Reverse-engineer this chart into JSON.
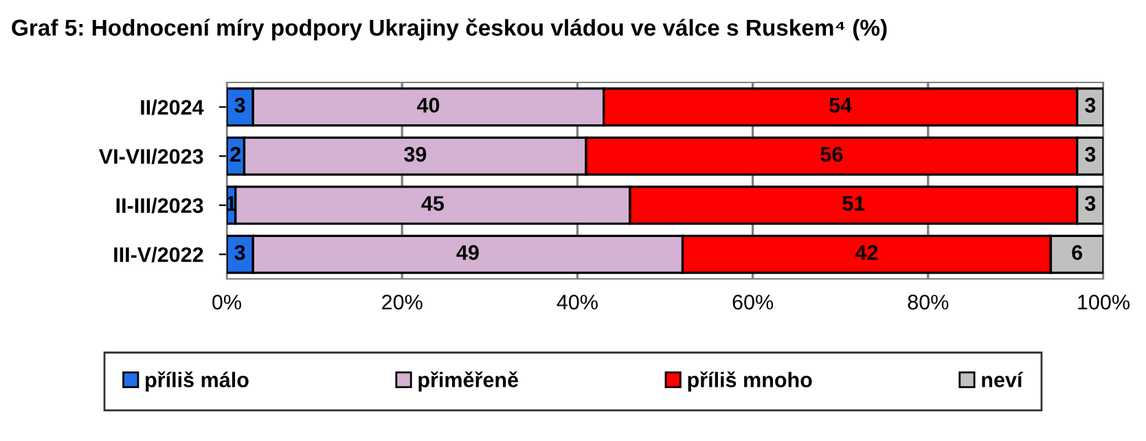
{
  "chart_data": {
    "type": "bar",
    "orientation": "horizontal",
    "stacked": true,
    "title": "Graf 5: Hodnocení míry podpory Ukrajiny českou vládou ve válce s Ruskem⁴ (%)",
    "categories": [
      "II/2024",
      "VI-VII/2023",
      "II-III/2023",
      "III-V/2022"
    ],
    "series": [
      {
        "name": "příliš málo",
        "color": "#1f6fe8",
        "values": [
          3,
          2,
          1,
          3
        ]
      },
      {
        "name": "přiměřeně",
        "color": "#d3b2d3",
        "values": [
          40,
          39,
          45,
          49
        ]
      },
      {
        "name": "příliš mnoho",
        "color": "#ff0000",
        "values": [
          54,
          56,
          51,
          42
        ]
      },
      {
        "name": "neví",
        "color": "#c0c0c0",
        "values": [
          3,
          3,
          3,
          6
        ]
      }
    ],
    "xlim": [
      0,
      100
    ],
    "xticks": [
      {
        "value": 0,
        "label": "0%"
      },
      {
        "value": 20,
        "label": "20%"
      },
      {
        "value": 40,
        "label": "40%"
      },
      {
        "value": 60,
        "label": "60%"
      },
      {
        "value": 80,
        "label": "80%"
      },
      {
        "value": 100,
        "label": "100%"
      }
    ],
    "grid": "x",
    "legend": "bottom",
    "data_labels": true
  }
}
